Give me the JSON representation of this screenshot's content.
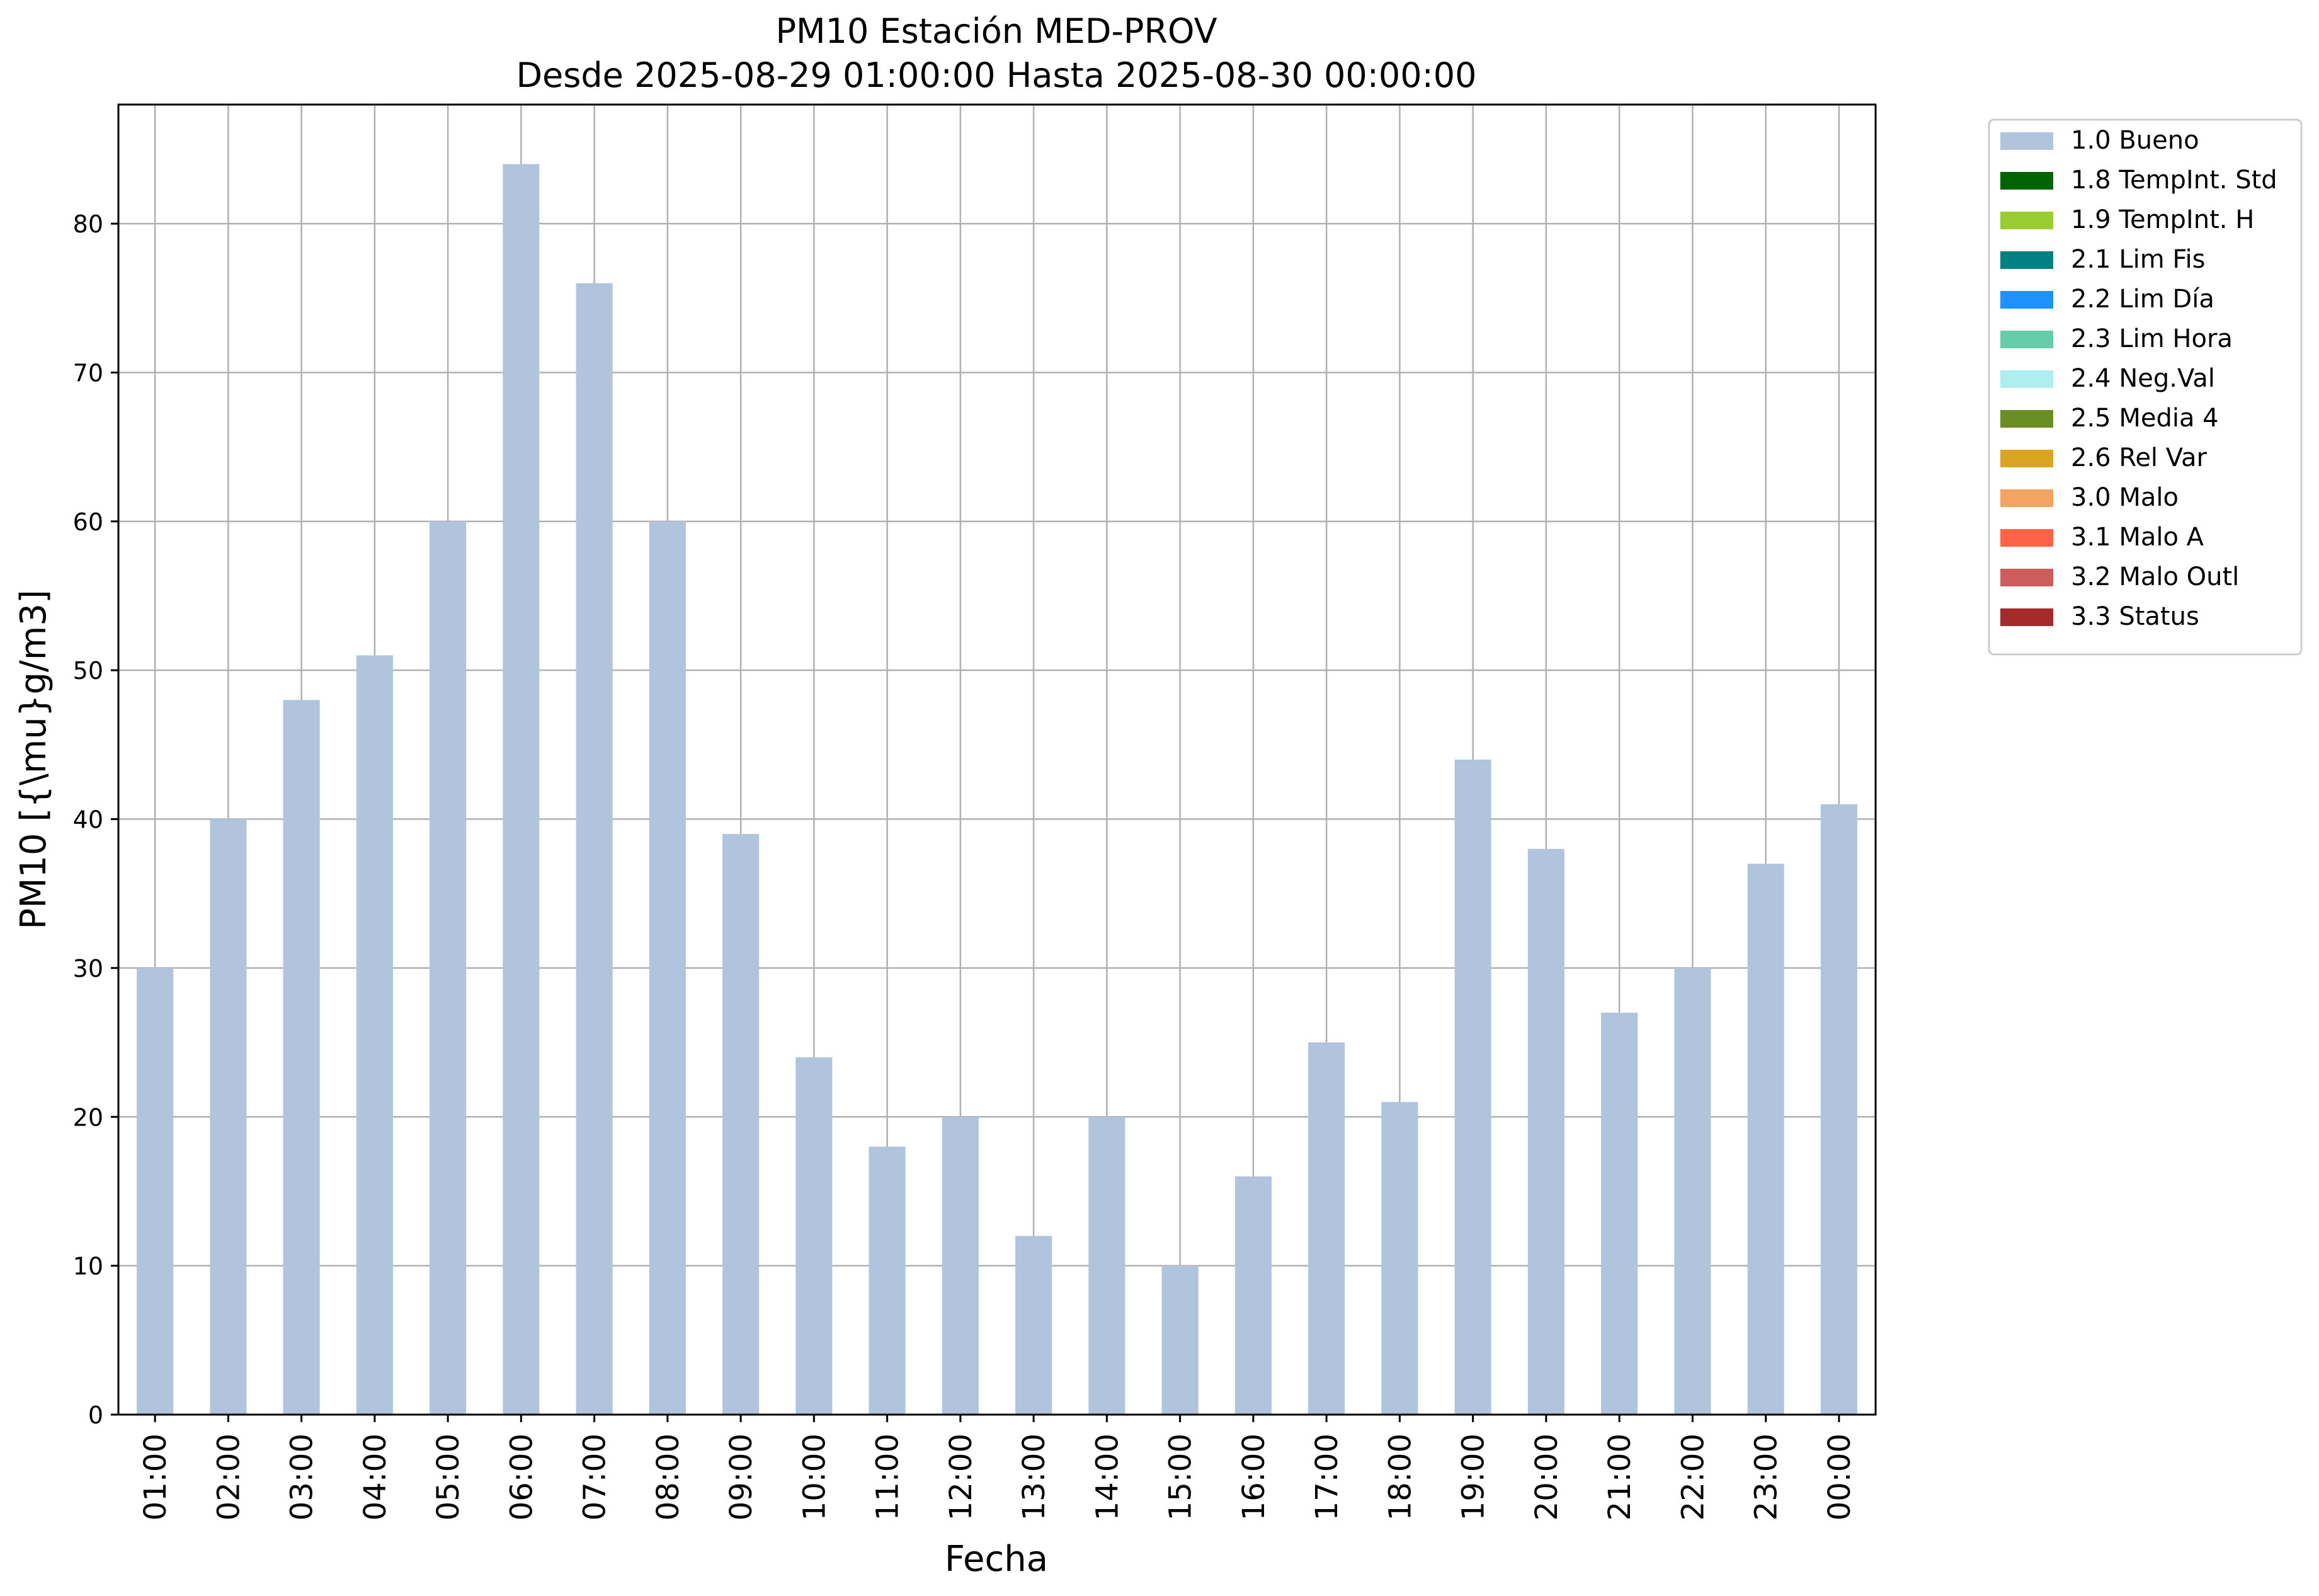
{
  "chart_data": {
    "type": "bar",
    "title": "PM10 Estación MED-PROV",
    "subtitle": "Desde 2025-08-29 01:00:00 Hasta 2025-08-30 00:00:00",
    "xlabel": "Fecha",
    "ylabel": "PM10 [{\\mu}g/m3]",
    "ylim": [
      0,
      88
    ],
    "yticks": [
      0,
      10,
      20,
      30,
      40,
      50,
      60,
      70,
      80
    ],
    "grid": true,
    "legend_position": "outside-right-top",
    "categories": [
      "01:00",
      "02:00",
      "03:00",
      "04:00",
      "05:00",
      "06:00",
      "07:00",
      "08:00",
      "09:00",
      "10:00",
      "11:00",
      "12:00",
      "13:00",
      "14:00",
      "15:00",
      "16:00",
      "17:00",
      "18:00",
      "19:00",
      "20:00",
      "21:00",
      "22:00",
      "23:00",
      "00:00"
    ],
    "series": [
      {
        "name": "1.0 Bueno",
        "color": "#b0c4de",
        "values": [
          30,
          40,
          48,
          51,
          60,
          84,
          76,
          60,
          39,
          24,
          18,
          20,
          12,
          20,
          10,
          16,
          25,
          21,
          44,
          38,
          27,
          30,
          37,
          41
        ]
      }
    ],
    "legend": [
      {
        "label": "1.0 Bueno",
        "color": "#b0c4de"
      },
      {
        "label": "1.8 TempInt. Std",
        "color": "#006400"
      },
      {
        "label": "1.9 TempInt. H",
        "color": "#9acd32"
      },
      {
        "label": "2.1 Lim Fis",
        "color": "#008080"
      },
      {
        "label": "2.2 Lim Día",
        "color": "#1e90ff"
      },
      {
        "label": "2.3 Lim Hora",
        "color": "#66cdaa"
      },
      {
        "label": "2.4 Neg.Val",
        "color": "#afeeee"
      },
      {
        "label": "2.5 Media 4",
        "color": "#6b8e23"
      },
      {
        "label": "2.6 Rel Var",
        "color": "#daa520"
      },
      {
        "label": "3.0 Malo",
        "color": "#f4a460"
      },
      {
        "label": "3.1 Malo A",
        "color": "#ff6347"
      },
      {
        "label": "3.2 Malo Outl",
        "color": "#cd5c5c"
      },
      {
        "label": "3.3 Status",
        "color": "#a52a2a"
      }
    ]
  }
}
